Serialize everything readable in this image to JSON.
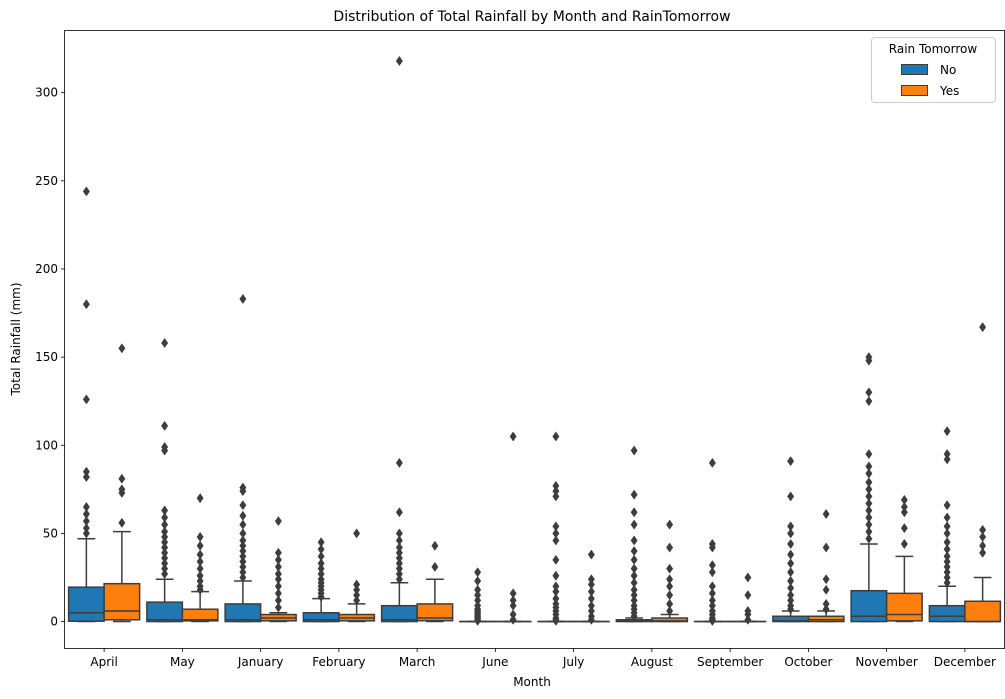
{
  "chart_data": {
    "type": "box",
    "title": "Distribution of Total Rainfall by Month and RainTomorrow",
    "xlabel": "Month",
    "ylabel": "Total Rainfall (mm)",
    "ylim": [
      -15,
      335
    ],
    "yticks": [
      0,
      50,
      100,
      150,
      200,
      250,
      300
    ],
    "categories": [
      "April",
      "May",
      "January",
      "February",
      "March",
      "June",
      "July",
      "August",
      "September",
      "October",
      "November",
      "December"
    ],
    "legend": {
      "title": "Rain Tomorrow",
      "placement": "top-right",
      "entries": [
        "No",
        "Yes"
      ]
    },
    "colors": {
      "No": "#1f77b4",
      "Yes": "#ff7f0e",
      "edge": "#3d3d3d"
    },
    "series": [
      {
        "name": "No",
        "boxes": [
          {
            "whislo": 0,
            "q1": 0.2,
            "med": 5,
            "q3": 19.5,
            "whishi": 47,
            "fliers": [
              50,
              53,
              57,
              61,
              65,
              82,
              85,
              126,
              180,
              244
            ]
          },
          {
            "whislo": 0,
            "q1": 0,
            "med": 1,
            "q3": 11,
            "whishi": 24,
            "fliers": [
              27,
              30,
              33,
              36,
              39,
              42,
              45,
              48,
              51,
              55,
              59,
              63,
              97,
              99,
              111,
              158
            ]
          },
          {
            "whislo": 0,
            "q1": 0,
            "med": 1,
            "q3": 10,
            "whishi": 23,
            "fliers": [
              25,
              28,
              31,
              34,
              37,
              40,
              43,
              46,
              50,
              55,
              60,
              66,
              74,
              76,
              183
            ]
          },
          {
            "whislo": 0,
            "q1": 0,
            "med": 1,
            "q3": 5,
            "whishi": 13,
            "fliers": [
              14,
              16,
              18,
              20,
              22,
              24,
              27,
              30,
              33,
              37,
              41,
              45
            ]
          },
          {
            "whislo": 0,
            "q1": 0,
            "med": 1,
            "q3": 9,
            "whishi": 22,
            "fliers": [
              24,
              27,
              30,
              33,
              36,
              39,
              42,
              46,
              50,
              62,
              90,
              318
            ]
          },
          {
            "whislo": 0,
            "q1": 0,
            "med": 0,
            "q3": 0,
            "whishi": 0,
            "fliers": [
              0.4,
              1,
              2,
              3,
              4,
              5,
              6,
              7,
              9,
              12,
              15,
              18,
              23,
              28
            ]
          },
          {
            "whislo": 0,
            "q1": 0,
            "med": 0,
            "q3": 0,
            "whishi": 0,
            "fliers": [
              0.4,
              1,
              2,
              4,
              6,
              8,
              10,
              13,
              17,
              20,
              26,
              35,
              46,
              50,
              54,
              71,
              74,
              77,
              105
            ]
          },
          {
            "whislo": 0,
            "q1": 0,
            "med": 0.4,
            "q3": 1,
            "whishi": 2,
            "fliers": [
              3,
              5,
              7,
              9,
              12,
              15,
              18,
              22,
              26,
              30,
              35,
              40,
              46,
              55,
              62,
              72,
              97
            ]
          },
          {
            "whislo": 0,
            "q1": 0,
            "med": 0,
            "q3": 0,
            "whishi": 0,
            "fliers": [
              0.4,
              1,
              2,
              4,
              6,
              9,
              12,
              16,
              20,
              28,
              32,
              42,
              44,
              90
            ]
          },
          {
            "whislo": 0,
            "q1": 0,
            "med": 0.4,
            "q3": 3,
            "whishi": 6,
            "fliers": [
              7,
              9,
              12,
              15,
              19,
              23,
              28,
              33,
              38,
              44,
              50,
              54,
              71,
              91
            ]
          },
          {
            "whislo": 0,
            "q1": 0,
            "med": 3,
            "q3": 17.5,
            "whishi": 44,
            "fliers": [
              47,
              51,
              55,
              59,
              63,
              67,
              71,
              75,
              79,
              84,
              88,
              95,
              125,
              130,
              148,
              150
            ]
          },
          {
            "whislo": 0,
            "q1": 0,
            "med": 3,
            "q3": 9,
            "whishi": 20,
            "fliers": [
              22,
              25,
              28,
              31,
              34,
              37,
              41,
              45,
              50,
              54,
              59,
              66,
              92,
              95,
              108
            ]
          }
        ]
      },
      {
        "name": "Yes",
        "boxes": [
          {
            "whislo": 0,
            "q1": 1,
            "med": 6,
            "q3": 21.5,
            "whishi": 51,
            "fliers": [
              56,
              73,
              75,
              81,
              155
            ]
          },
          {
            "whislo": 0,
            "q1": 0.4,
            "med": 1,
            "q3": 7,
            "whishi": 17,
            "fliers": [
              18,
              20,
              23,
              26,
              30,
              34,
              38,
              43,
              48,
              70
            ]
          },
          {
            "whislo": 0,
            "q1": 0.4,
            "med": 2,
            "q3": 4,
            "whishi": 5,
            "fliers": [
              8,
              12,
              16,
              20,
              24,
              27,
              31,
              35,
              39,
              57
            ]
          },
          {
            "whislo": 0,
            "q1": 0.4,
            "med": 2,
            "q3": 4,
            "whishi": 10,
            "fliers": [
              12,
              15,
              18,
              21,
              50
            ]
          },
          {
            "whislo": 0,
            "q1": 0.5,
            "med": 2,
            "q3": 10,
            "whishi": 24,
            "fliers": [
              31,
              43
            ]
          },
          {
            "whislo": 0,
            "q1": 0,
            "med": 0,
            "q3": 0,
            "whishi": 0,
            "fliers": [
              1,
              4,
              9,
              12,
              16,
              105
            ]
          },
          {
            "whislo": 0,
            "q1": 0,
            "med": 0,
            "q3": 0,
            "whishi": 0,
            "fliers": [
              1,
              3,
              6,
              9,
              13,
              17,
              21,
              24,
              38
            ]
          },
          {
            "whislo": 0,
            "q1": 0,
            "med": 0.4,
            "q3": 2,
            "whishi": 4,
            "fliers": [
              6,
              10,
              15,
              20,
              24,
              30,
              42,
              55
            ]
          },
          {
            "whislo": 0,
            "q1": 0,
            "med": 0,
            "q3": 0,
            "whishi": 0,
            "fliers": [
              1,
              4,
              6,
              15,
              25
            ]
          },
          {
            "whislo": 0,
            "q1": 0,
            "med": 1,
            "q3": 3,
            "whishi": 6,
            "fliers": [
              7,
              10,
              18,
              24,
              42,
              61
            ]
          },
          {
            "whislo": 0,
            "q1": 0.4,
            "med": 4,
            "q3": 16,
            "whishi": 37,
            "fliers": [
              44,
              53,
              62,
              65,
              69
            ]
          },
          {
            "whislo": 0,
            "q1": 0,
            "med": 0,
            "q3": 11.5,
            "whishi": 25,
            "fliers": [
              39,
              43,
              48,
              52,
              167
            ]
          }
        ]
      }
    ]
  }
}
